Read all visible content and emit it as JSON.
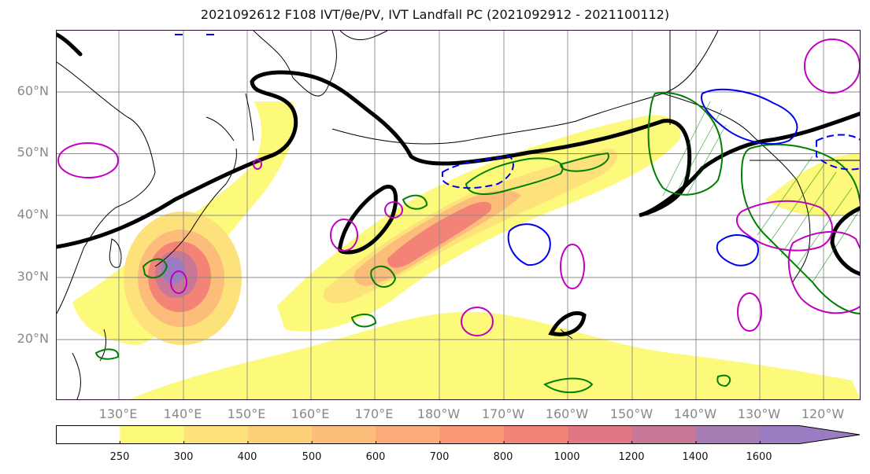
{
  "title": "2021092612 F108 IVT/θe/PV, IVT Landfall PC (2021092912 - 2021100112)",
  "lat_labels": [
    "60°N",
    "50°N",
    "40°N",
    "30°N",
    "20°N"
  ],
  "lon_labels": [
    "130°E",
    "140°E",
    "150°E",
    "160°E",
    "170°E",
    "180°W",
    "170°W",
    "160°W",
    "150°W",
    "140°W",
    "130°W",
    "120°W"
  ],
  "colorbar": {
    "levels": [
      "250",
      "300",
      "400",
      "500",
      "600",
      "700",
      "800",
      "1000",
      "1200",
      "1400",
      "1600"
    ],
    "colors": [
      "#ffffff",
      "#fdf97a",
      "#fde27c",
      "#fccf79",
      "#fcbd7a",
      "#fbab78",
      "#f99876",
      "#f38377",
      "#e17685",
      "#c97797",
      "#a67cb4",
      "#9b7cc3"
    ]
  },
  "overlay_colors": {
    "theta_e": "#008000",
    "pv_positive": "#c000c0",
    "pv_negative": "#0000ee",
    "landfall_pc": "#000000"
  }
}
